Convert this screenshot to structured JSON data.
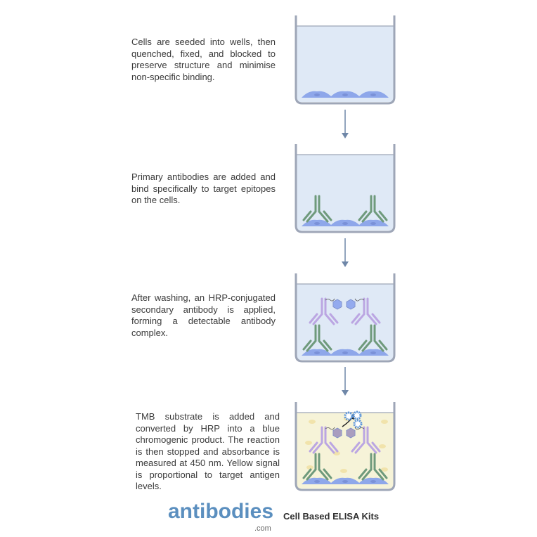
{
  "steps": [
    {
      "text": "Cells are seeded into wells, then quenched, fixed, and blocked to preserve structure and minimise non-specific binding.",
      "liquid_color": "#dfe9f6"
    },
    {
      "text": "Primary antibodies are added and bind specifically to target epitopes on the cells.",
      "liquid_color": "#dfe9f6"
    },
    {
      "text": "After washing, an HRP-conjugated secondary antibody is applied, forming a detectable antibody complex.",
      "liquid_color": "#dfe9f6"
    },
    {
      "text": "TMB substrate is added and converted by HRP into a blue chromogenic product. The reaction is then stopped  and absorbance is measured at 450 nm. Yellow signal is proportional to target antigen levels.",
      "liquid_color": "#f6f3d8"
    }
  ],
  "colors": {
    "cell": "#8ea7ea",
    "primary_antibody": "#6f9a7c",
    "secondary_antibody": "#bba6e2",
    "hrp": "#93aaee",
    "hrp_active": "#a99dbf",
    "product": "#5b94d8",
    "arrow": "#6f87a8",
    "well": "#9ea6b7"
  },
  "footer": {
    "logo": "antibodies",
    "logo_suffix": ".com",
    "tagline": "Cell Based ELISA Kits"
  }
}
